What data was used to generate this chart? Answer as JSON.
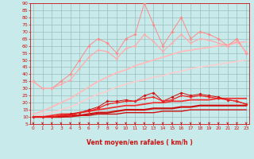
{
  "xlabel": "Vent moyen/en rafales ( km/h )",
  "x": [
    0,
    1,
    2,
    3,
    4,
    5,
    6,
    7,
    8,
    9,
    10,
    11,
    12,
    13,
    14,
    15,
    16,
    17,
    18,
    19,
    20,
    21,
    22,
    23
  ],
  "background_color": "#c8eaea",
  "grid_color": "#9bbfbf",
  "ylim": [
    5,
    90
  ],
  "yticks": [
    5,
    10,
    15,
    20,
    25,
    30,
    35,
    40,
    45,
    50,
    55,
    60,
    65,
    70,
    75,
    80,
    85,
    90
  ],
  "lines": [
    {
      "name": "rafales_jagged",
      "color": "#ff8888",
      "linewidth": 0.7,
      "marker": "D",
      "markersize": 1.8,
      "values": [
        35,
        30,
        30,
        35,
        40,
        50,
        60,
        65,
        62,
        55,
        65,
        68,
        90,
        75,
        60,
        70,
        80,
        65,
        70,
        68,
        65,
        60,
        65,
        55
      ]
    },
    {
      "name": "rafales_smooth_upper",
      "color": "#ffaaaa",
      "linewidth": 0.9,
      "marker": "D",
      "markersize": 1.5,
      "values": [
        35,
        30,
        30,
        33,
        36,
        44,
        52,
        57,
        56,
        51,
        58,
        60,
        68,
        63,
        56,
        62,
        68,
        62,
        65,
        64,
        62,
        60,
        63,
        56
      ]
    },
    {
      "name": "regression_rafales_upper",
      "color": "#ffbbbb",
      "linewidth": 1.3,
      "marker": null,
      "values": [
        12,
        14,
        17,
        20,
        23,
        27,
        31,
        35,
        38,
        41,
        43,
        46,
        48,
        50,
        52,
        54,
        56,
        57,
        58,
        59,
        60,
        61,
        62,
        63
      ]
    },
    {
      "name": "regression_rafales_lower",
      "color": "#ffcccc",
      "linewidth": 1.1,
      "marker": null,
      "values": [
        10,
        12,
        13,
        15,
        17,
        20,
        23,
        26,
        28,
        31,
        33,
        35,
        36,
        38,
        39,
        41,
        42,
        44,
        45,
        46,
        47,
        48,
        49,
        50
      ]
    },
    {
      "name": "wind_jagged",
      "color": "#cc1111",
      "linewidth": 0.7,
      "marker": "D",
      "markersize": 1.8,
      "values": [
        10,
        10,
        10,
        11,
        12,
        13,
        15,
        17,
        21,
        21,
        22,
        21,
        25,
        27,
        21,
        24,
        27,
        25,
        26,
        25,
        24,
        22,
        21,
        19
      ]
    },
    {
      "name": "wind_smooth",
      "color": "#ee2222",
      "linewidth": 0.9,
      "marker": "D",
      "markersize": 1.5,
      "values": [
        10,
        10,
        10,
        11,
        11,
        13,
        14,
        16,
        19,
        20,
        21,
        21,
        23,
        24,
        21,
        22,
        25,
        24,
        25,
        24,
        23,
        22,
        21,
        19
      ]
    },
    {
      "name": "regression_wind_upper",
      "color": "#ee3333",
      "linewidth": 1.3,
      "marker": null,
      "values": [
        10,
        10,
        11,
        12,
        12,
        13,
        14,
        15,
        16,
        17,
        18,
        18,
        19,
        20,
        20,
        21,
        21,
        22,
        22,
        22,
        23,
        23,
        23,
        23
      ]
    },
    {
      "name": "regression_wind_mid",
      "color": "#cc1111",
      "linewidth": 1.6,
      "marker": null,
      "values": [
        10,
        10,
        10,
        10,
        11,
        11,
        12,
        13,
        13,
        14,
        15,
        15,
        15,
        16,
        16,
        16,
        17,
        17,
        18,
        18,
        18,
        18,
        18,
        18
      ]
    },
    {
      "name": "regression_wind_low",
      "color": "#cc1111",
      "linewidth": 1.0,
      "marker": null,
      "values": [
        10,
        10,
        10,
        10,
        10,
        11,
        11,
        12,
        12,
        12,
        13,
        13,
        13,
        13,
        14,
        14,
        14,
        15,
        15,
        15,
        15,
        15,
        15,
        15
      ]
    }
  ],
  "arrow_color": "#cc1111",
  "xlabel_color": "#cc1111",
  "tick_color": "#cc1111",
  "axis_color": "#cc1111"
}
